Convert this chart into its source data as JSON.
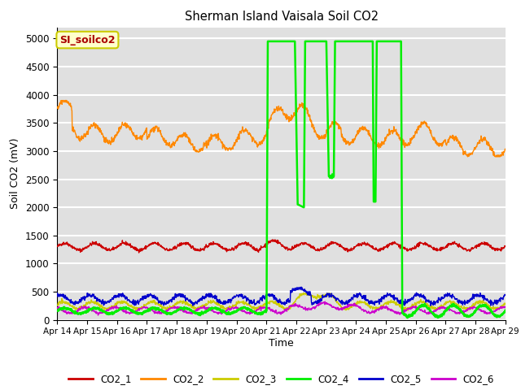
{
  "title": "Sherman Island Vaisala Soil CO2",
  "ylabel": "Soil CO2 (mV)",
  "xlabel": "Time",
  "ylim": [
    0,
    5200
  ],
  "yticks": [
    0,
    500,
    1000,
    1500,
    2000,
    2500,
    3000,
    3500,
    4000,
    4500,
    5000
  ],
  "xtick_labels": [
    "Apr 14",
    "Apr 15",
    "Apr 16",
    "Apr 17",
    "Apr 18",
    "Apr 19",
    "Apr 20",
    "Apr 21",
    "Apr 22",
    "Apr 23",
    "Apr 24",
    "Apr 25",
    "Apr 26",
    "Apr 27",
    "Apr 28",
    "Apr 29"
  ],
  "background_color": "#e0e0e0",
  "grid_color": "#ffffff",
  "line_colors": [
    "#cc0000",
    "#ff8800",
    "#cccc00",
    "#00ee00",
    "#0000cc",
    "#cc00cc"
  ],
  "annotation_text": "SI_soilco2",
  "annotation_bg": "#ffffcc",
  "annotation_border": "#cccc00",
  "annotation_text_color": "#aa0000",
  "fig_width": 6.4,
  "fig_height": 4.8,
  "dpi": 100
}
